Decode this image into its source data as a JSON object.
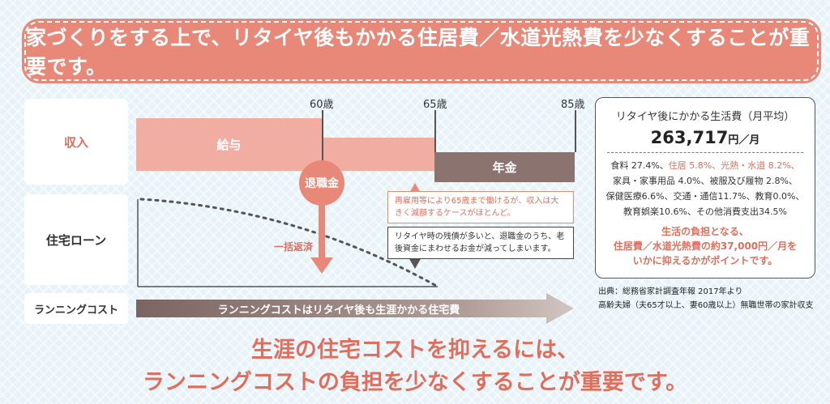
{
  "banner": {
    "text": "家づくりをする上で、リタイヤ後もかかる住居費／水道光熱費を少なくすることが重要です。"
  },
  "rows": {
    "income": "収入",
    "loan": "住宅ローン",
    "running": "ランニングコスト"
  },
  "ages": {
    "a60": "60歳",
    "a65": "65歳",
    "a85": "85歳"
  },
  "bars": {
    "salary": "給与",
    "pension": "年金",
    "retirement": "退職金",
    "lump_sum": "一括返済"
  },
  "running_arrow": "ランニングコストはリタイヤ後も生涯かかる住宅費",
  "callouts": {
    "pink": "再雇用等により65歳まで働けるが、収入は大きく減額するケースがほとんど。",
    "dark": "リタイヤ時の残債が多いと、退職金のうち、老後資金にまわせるお金が減ってしまいます。"
  },
  "panel": {
    "title": "リタイヤ後にかかる生活費（月平均）",
    "amount": "263,717",
    "unit": "円／月",
    "line1a": "食料 27.4%、",
    "line1b": "住居 5.8%、光熱・水道 8.2%、",
    "line2": "家具・家事用品 4.0%、被服及び履物 2.8%、",
    "line3": "保健医療6.6%、交通・通信11.7%、教育0.0%、",
    "line4": "教育娯楽10.6%、その他消費支出34.5%",
    "note1": "生活の負担となる、",
    "note2": "住居費／水道光熱費の約37,000円／月を",
    "note3": "いかに抑えるかがポイントです。"
  },
  "source": {
    "line1": "出典：総務省家計調査年報 2017年より",
    "line2": "高齢夫婦（夫65才以上、妻60歳以上）無職世帯の家計収支"
  },
  "message": {
    "line1": "生涯の住宅コストを抑えるには、",
    "line2": "ランニングコストの負担を少なくすることが重要です。"
  },
  "colors": {
    "accent": "#e88878",
    "accent_text": "#e06e5c",
    "pension": "#8b7470",
    "salary": "#f2ada3"
  }
}
